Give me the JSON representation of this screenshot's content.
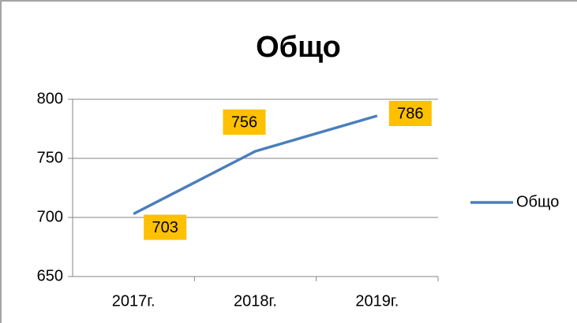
{
  "chart_data": {
    "type": "line",
    "title": "Общо",
    "categories": [
      "2017г.",
      "2018г.",
      "2019г."
    ],
    "series": [
      {
        "name": "Общо",
        "color": "#4a7ebb",
        "values": [
          703,
          756,
          786
        ]
      }
    ],
    "ylim": [
      650,
      800
    ],
    "yticks": [
      650,
      700,
      750,
      800
    ],
    "grid": true,
    "label_color": "#ffc000",
    "legend": "right"
  }
}
